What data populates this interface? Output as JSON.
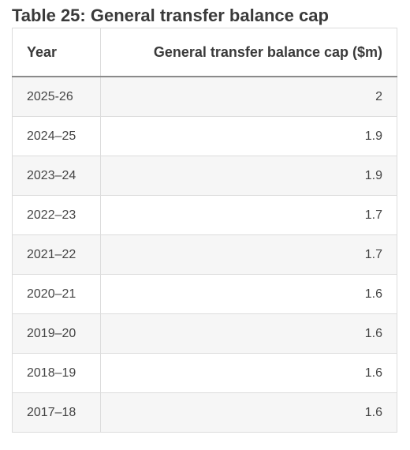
{
  "title": "Table 25: General transfer balance cap",
  "table": {
    "headers": [
      "Year",
      "General transfer balance cap ($m)"
    ],
    "rows": [
      [
        "2025-26",
        "2"
      ],
      [
        "2024–25",
        "1.9"
      ],
      [
        "2023–24",
        "1.9"
      ],
      [
        "2022–23",
        "1.7"
      ],
      [
        "2021–22",
        "1.7"
      ],
      [
        "2020–21",
        "1.6"
      ],
      [
        "2019–20",
        "1.6"
      ],
      [
        "2018–19",
        "1.6"
      ],
      [
        "2017–18",
        "1.6"
      ]
    ]
  }
}
